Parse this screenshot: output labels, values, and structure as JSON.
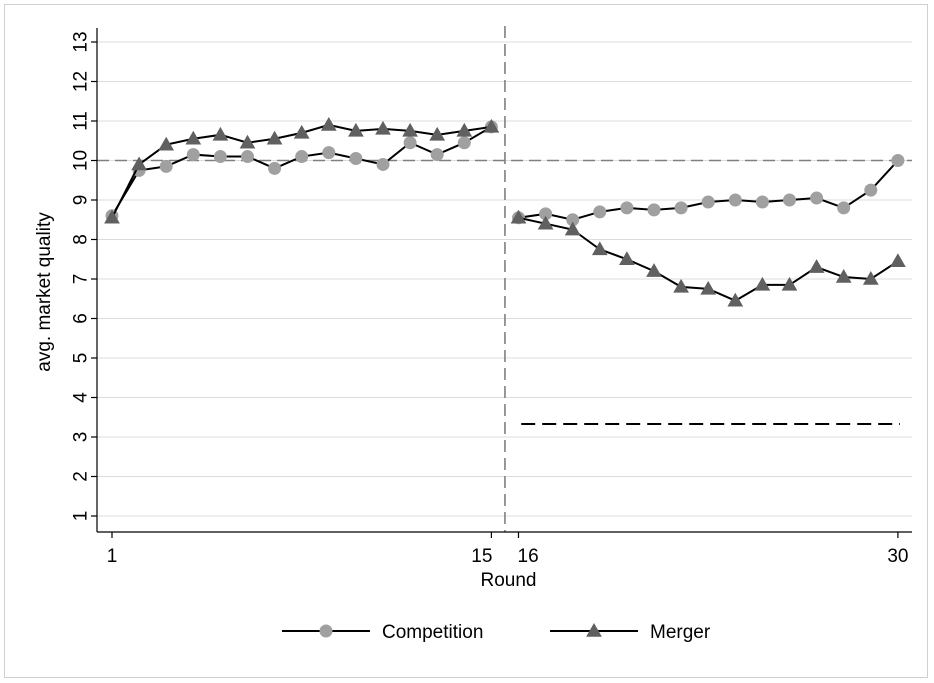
{
  "chart_data": {
    "type": "line",
    "title": "",
    "xlabel": "Round",
    "ylabel": "avg. market quality",
    "ylim": [
      1,
      13
    ],
    "y_ticks": [
      1,
      2,
      3,
      4,
      5,
      6,
      7,
      8,
      9,
      10,
      11,
      12,
      13
    ],
    "x_ticks": [
      "1",
      "15",
      "16",
      "30"
    ],
    "grid": true,
    "legend": "bottom",
    "reference_lines": {
      "vertical_x": 15.5,
      "horizontal_dashed": {
        "y": 10,
        "x_range": [
          1,
          30
        ]
      },
      "horizontal_dashed_black": {
        "y": 3.33,
        "x_range": [
          16.1,
          30
        ]
      }
    },
    "series": [
      {
        "name": "Competition",
        "marker": "circle",
        "color": "#a0a0a0",
        "segments": [
          {
            "x": [
              1,
              2,
              3,
              4,
              5,
              6,
              7,
              8,
              9,
              10,
              11,
              12,
              13,
              14,
              15
            ],
            "y": [
              8.6,
              9.75,
              9.85,
              10.15,
              10.1,
              10.1,
              9.8,
              10.1,
              10.2,
              10.05,
              9.9,
              10.45,
              10.15,
              10.45,
              10.85
            ]
          },
          {
            "x": [
              16,
              17,
              18,
              19,
              20,
              21,
              22,
              23,
              24,
              25,
              26,
              27,
              28,
              29,
              30
            ],
            "y": [
              8.55,
              8.65,
              8.5,
              8.7,
              8.8,
              8.75,
              8.8,
              8.95,
              9.0,
              8.95,
              9.0,
              9.05,
              8.8,
              9.25,
              10.0
            ]
          }
        ]
      },
      {
        "name": "Merger",
        "marker": "triangle",
        "color": "#606060",
        "segments": [
          {
            "x": [
              1,
              2,
              3,
              4,
              5,
              6,
              7,
              8,
              9,
              10,
              11,
              12,
              13,
              14,
              15
            ],
            "y": [
              8.55,
              9.9,
              10.4,
              10.55,
              10.65,
              10.45,
              10.55,
              10.7,
              10.9,
              10.75,
              10.8,
              10.75,
              10.65,
              10.75,
              10.85
            ]
          },
          {
            "x": [
              16,
              17,
              18,
              19,
              20,
              21,
              22,
              23,
              24,
              25,
              26,
              27,
              28,
              29,
              30
            ],
            "y": [
              8.55,
              8.4,
              8.25,
              7.75,
              7.5,
              7.2,
              6.8,
              6.75,
              6.45,
              6.85,
              6.85,
              7.3,
              7.05,
              7.0,
              7.45
            ]
          }
        ]
      }
    ]
  }
}
